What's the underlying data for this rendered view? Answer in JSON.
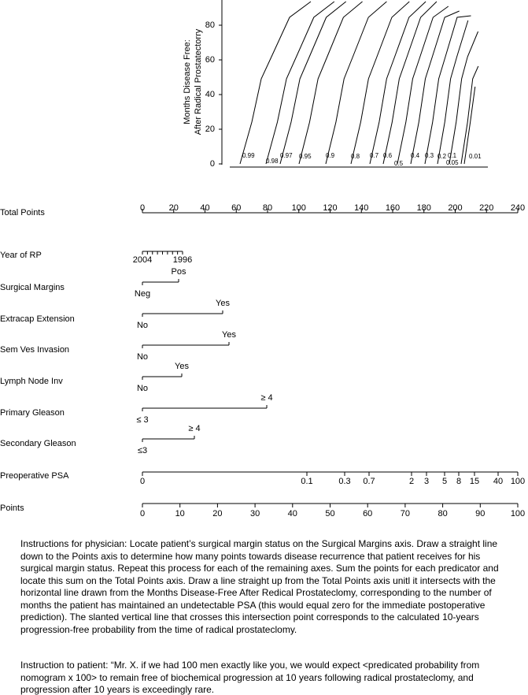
{
  "plot": {
    "y_axis_label": [
      "Months Disease Free:",
      "After Radical Prostatectorry"
    ],
    "y_ticks": [
      "0",
      "20",
      "40",
      "60",
      "80"
    ],
    "curve_labels": [
      "0.99",
      "0.98",
      "0.97",
      "0.95",
      "0.9",
      "0.8",
      "0.7",
      "0.6",
      "0.5",
      "0.4",
      "0.3",
      "0.2",
      "0.1",
      "0.05",
      "0.01"
    ]
  },
  "total_points": {
    "label": "Total Points",
    "ticks": [
      "0",
      "20",
      "40",
      "60",
      "80",
      "100",
      "120",
      "140",
      "160",
      "180",
      "200",
      "220",
      "240"
    ]
  },
  "predictors": [
    {
      "label": "Year of RP",
      "low": "2004",
      "high": "1996"
    },
    {
      "label": "Surgical Margins",
      "low": "Neg",
      "high": "Pos"
    },
    {
      "label": "Extracap Extension",
      "low": "No",
      "high": "Yes"
    },
    {
      "label": "Sem Ves Invasion",
      "low": "No",
      "high": "Yes"
    },
    {
      "label": "Lymph Node Inv",
      "low": "No",
      "high": "Yes"
    },
    {
      "label": "Primary Gleason",
      "low": "≤ 3",
      "high": "≥ 4"
    },
    {
      "label": "Secondary Gleason",
      "low": "≤3",
      "high": "≥ 4"
    }
  ],
  "psa": {
    "label": "Preoperative PSA",
    "ticks": [
      "0",
      "0.1",
      "0.3",
      "0.7",
      "2",
      "3",
      "5",
      "8",
      "15",
      "40",
      "100"
    ]
  },
  "points": {
    "label": "Points",
    "ticks": [
      "0",
      "10",
      "20",
      "30",
      "40",
      "50",
      "60",
      "70",
      "80",
      "90",
      "100"
    ]
  },
  "instructions": [
    "Instructions for physician: Locate patient’s surgical margin status on the Surgical Margins axis. Draw a straight line down to the Points axis to determine how many points towards disease recurrence that patient receives for his surgical margin status. Repeat this process for each of the remaining axes. Sum the points for each predicator and locate this sum on the Total Points axis. Draw a line straight up from the Total Points axis unitl it intersects with the horizontal line drawn from the Months Disease-Free After Redical Prostateclomy, corresponding to the number of months the patient has maintained an undetectable PSA (this would equal zero for the immediate postoperative prediction). The slanted vertical line that crosses this intersection point corresponds to the calculated 10-years progression-free probability from the time of radical prostateclomy.",
    "Instruction to patient: “Mr. X. if we had 100 men exactly like you, we would expect <predicated probability from nomogram x 100> to remain free of biochemical progression at 10 years following radical prostateclomy, and progression after 10 years is exceedingly rare."
  ]
}
